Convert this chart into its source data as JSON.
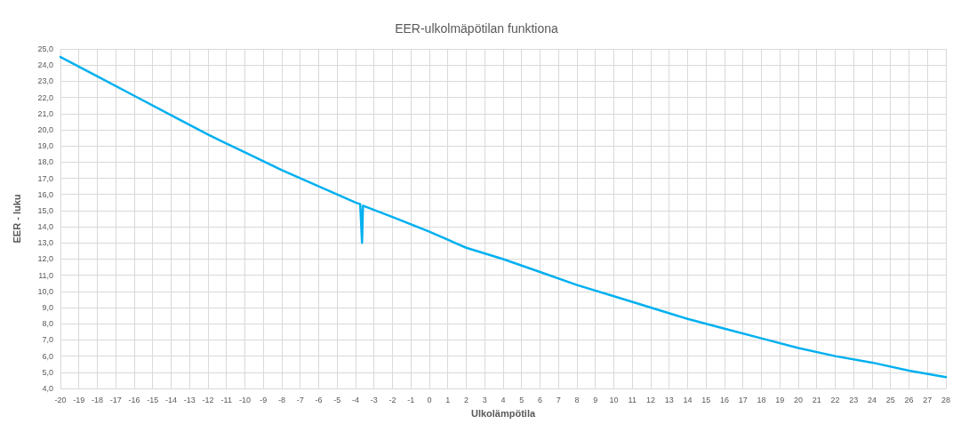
{
  "chart_data": {
    "type": "line",
    "title": "EER-ulkolmäpötilan funktiona",
    "xlabel": "Ulkolämpötila",
    "ylabel": "EER - luku",
    "series": [
      {
        "color": "#00b0f0",
        "x": [
          -20,
          -18,
          -16,
          -14,
          -12,
          -10,
          -8,
          -6,
          -4,
          -3.75,
          -3.65,
          -3.6,
          -2,
          0,
          2,
          4,
          6,
          8,
          10,
          12,
          14,
          16,
          18,
          20,
          22,
          24,
          26,
          28
        ],
        "values": [
          24.5,
          23.3,
          22.1,
          20.9,
          19.7,
          18.6,
          17.5,
          16.5,
          15.5,
          15.4,
          13.0,
          15.3,
          14.6,
          13.7,
          12.7,
          12.0,
          11.2,
          10.4,
          9.7,
          9.0,
          8.3,
          7.7,
          7.1,
          6.5,
          6.0,
          5.6,
          5.1,
          4.7
        ]
      }
    ],
    "xlim": [
      -20,
      28
    ],
    "xticks": [
      -20,
      -19,
      -18,
      -17,
      -16,
      -15,
      -14,
      -13,
      -12,
      -11,
      -10,
      -9,
      -8,
      -7,
      -6,
      -5,
      -4,
      -3,
      -2,
      -1,
      0,
      1,
      2,
      3,
      4,
      5,
      6,
      7,
      8,
      9,
      10,
      11,
      12,
      13,
      14,
      15,
      16,
      17,
      18,
      19,
      20,
      21,
      22,
      23,
      24,
      25,
      26,
      27,
      28
    ],
    "ylim": [
      4,
      25
    ],
    "yticks": [
      {
        "value": 4,
        "label": "4,0"
      },
      {
        "value": 5,
        "label": "5,0"
      },
      {
        "value": 6,
        "label": "6,0"
      },
      {
        "value": 7,
        "label": "7,0"
      },
      {
        "value": 8,
        "label": "8,0"
      },
      {
        "value": 9,
        "label": "9,0"
      },
      {
        "value": 10,
        "label": "10,0"
      },
      {
        "value": 11,
        "label": "11,0"
      },
      {
        "value": 12,
        "label": "12,0"
      },
      {
        "value": 13,
        "label": "13,0"
      },
      {
        "value": 14,
        "label": "14,0"
      },
      {
        "value": 15,
        "label": "15,0"
      },
      {
        "value": 16,
        "label": "16,0"
      },
      {
        "value": 17,
        "label": "17,0"
      },
      {
        "value": 18,
        "label": "18,0"
      },
      {
        "value": 19,
        "label": "19,0"
      },
      {
        "value": 20,
        "label": "20,0"
      },
      {
        "value": 21,
        "label": "21,0"
      },
      {
        "value": 22,
        "label": "22,0"
      },
      {
        "value": 23,
        "label": "23,0"
      },
      {
        "value": 24,
        "label": "24,0"
      },
      {
        "value": 25,
        "label": "25,0"
      }
    ],
    "grid": true,
    "marker": "none",
    "line_style": "solid"
  }
}
